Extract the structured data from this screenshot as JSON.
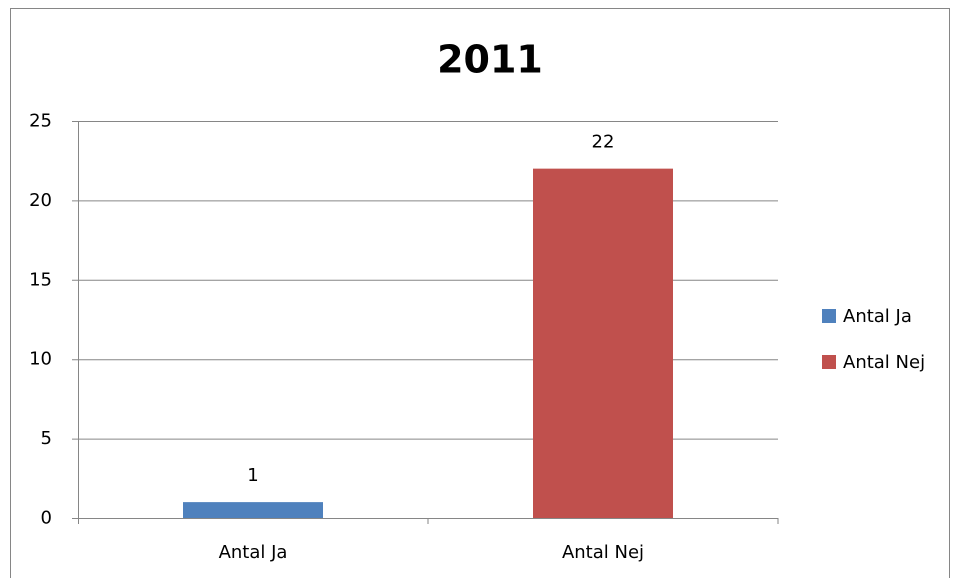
{
  "chart_data": {
    "type": "bar",
    "title": "2011",
    "categories": [
      "Antal Ja",
      "Antal Nej"
    ],
    "values": [
      1,
      22
    ],
    "colors": [
      "#4f81bd",
      "#c0504d"
    ],
    "ylim": [
      0,
      25
    ],
    "yticks": [
      0,
      5,
      10,
      15,
      20,
      25
    ],
    "grid": true,
    "data_labels": true,
    "legend": "right"
  }
}
